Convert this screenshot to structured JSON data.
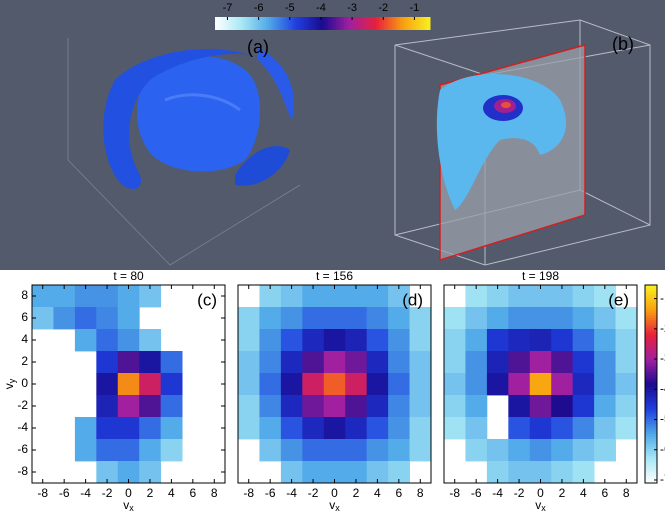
{
  "figure": {
    "labels": [
      "(a)",
      "(b)"
    ],
    "colormap": [
      "#ffffff",
      "#a8e8f4",
      "#4fa8e8",
      "#2040e0",
      "#1a0a90",
      "#a020a0",
      "#e8203c",
      "#f8a010",
      "#f8f020"
    ],
    "top_colorbar": {
      "clim": [
        -7.4,
        -0.5
      ],
      "ticks": [
        -7,
        -6,
        -5,
        -4,
        -3,
        -2,
        -1
      ]
    },
    "side_colorbar": {
      "clim": [
        -7.1,
        -0.55
      ],
      "ticks": [
        -1,
        -2,
        -3,
        -4,
        -5,
        -6,
        -7
      ]
    }
  },
  "chart_data": [
    {
      "type": "heatmap",
      "title": "t = 80",
      "label": "(c)",
      "xlabel": {
        "text": "v",
        "sub": "x"
      },
      "ylabel": {
        "text": "v",
        "sub": "y"
      },
      "x": [
        -8,
        -6,
        -4,
        -2,
        0,
        2,
        4,
        6,
        8
      ],
      "y": [
        8,
        6,
        4,
        2,
        0,
        -2,
        -4,
        -6,
        -8
      ],
      "xlim": [
        -9,
        9
      ],
      "ylim": [
        -9,
        9
      ],
      "xticks": [
        -8,
        -6,
        -4,
        -2,
        0,
        2,
        4,
        6,
        8
      ],
      "yticks": [
        -8,
        -6,
        -4,
        -2,
        0,
        2,
        4,
        6,
        8
      ],
      "z": [
        [
          -5.5,
          -5.5,
          -5.3,
          -5.3,
          -5.5,
          -5.8,
          null,
          null,
          null
        ],
        [
          -5.8,
          -5.3,
          -5.0,
          -5.2,
          -5.5,
          null,
          null,
          null,
          null
        ],
        [
          null,
          null,
          -5.5,
          -5.0,
          -5.3,
          -5.8,
          null,
          null,
          null
        ],
        [
          null,
          null,
          null,
          -4.5,
          -3.5,
          -4.0,
          -5.0,
          null,
          null
        ],
        [
          null,
          null,
          null,
          -4.0,
          -1.5,
          -2.5,
          -4.5,
          null,
          null
        ],
        [
          null,
          null,
          null,
          -4.2,
          -3.0,
          -3.5,
          -5.0,
          null,
          null
        ],
        [
          null,
          null,
          -5.5,
          -4.5,
          -4.5,
          -5.0,
          -5.5,
          null,
          null
        ],
        [
          null,
          null,
          -5.5,
          -5.0,
          -5.0,
          -5.5,
          -6.0,
          null,
          null
        ],
        [
          null,
          null,
          null,
          -5.8,
          -5.5,
          -5.8,
          null,
          null,
          null
        ]
      ]
    },
    {
      "type": "heatmap",
      "title": "t = 156",
      "label": "(d)",
      "xlabel": {
        "text": "v",
        "sub": "x"
      },
      "x": [
        -8,
        -6,
        -4,
        -2,
        0,
        2,
        4,
        6,
        8
      ],
      "y": [
        8,
        6,
        4,
        2,
        0,
        -2,
        -4,
        -6,
        -8
      ],
      "xlim": [
        -9,
        9
      ],
      "ylim": [
        -9,
        9
      ],
      "xticks": [
        -8,
        -6,
        -4,
        -2,
        0,
        2,
        4,
        6,
        8
      ],
      "z": [
        [
          null,
          -6.0,
          -5.8,
          -5.5,
          -5.5,
          -5.5,
          -5.5,
          -5.8,
          null
        ],
        [
          -6.0,
          -5.5,
          -5.3,
          -5.0,
          -5.0,
          -5.0,
          -5.2,
          -5.5,
          -6.0
        ],
        [
          -6.0,
          -5.3,
          -4.8,
          -4.3,
          -4.0,
          -4.2,
          -4.8,
          -5.3,
          -6.0
        ],
        [
          -5.8,
          -5.2,
          -4.3,
          -3.5,
          -3.0,
          -3.3,
          -4.3,
          -5.2,
          -5.8
        ],
        [
          -5.8,
          -5.0,
          -4.0,
          -2.5,
          -1.8,
          -2.5,
          -4.0,
          -5.0,
          -5.8
        ],
        [
          -6.0,
          -5.2,
          -4.3,
          -3.3,
          -3.0,
          -3.5,
          -4.3,
          -5.2,
          -5.8
        ],
        [
          -6.0,
          -5.5,
          -4.8,
          -4.3,
          -4.0,
          -4.3,
          -4.8,
          -5.3,
          -6.0
        ],
        [
          null,
          -5.8,
          -5.3,
          -5.0,
          -5.0,
          -5.0,
          -5.3,
          -5.5,
          -6.0
        ],
        [
          null,
          null,
          -5.8,
          -5.5,
          -5.5,
          -5.5,
          -5.8,
          -6.0,
          null
        ]
      ]
    },
    {
      "type": "heatmap",
      "title": "t = 198",
      "label": "(e)",
      "xlabel": {
        "text": "v",
        "sub": "x"
      },
      "x": [
        -8,
        -6,
        -4,
        -2,
        0,
        2,
        4,
        6,
        8
      ],
      "y": [
        8,
        6,
        4,
        2,
        0,
        -2,
        -4,
        -6,
        -8
      ],
      "xlim": [
        -9,
        9
      ],
      "ylim": [
        -9,
        9
      ],
      "xticks": [
        -8,
        -6,
        -4,
        -2,
        0,
        2,
        4,
        6,
        8
      ],
      "z": [
        [
          null,
          -6.2,
          -6.0,
          -5.8,
          -5.8,
          -5.8,
          -6.0,
          -6.2,
          null
        ],
        [
          -6.2,
          -5.8,
          -5.5,
          -5.3,
          -5.3,
          -5.3,
          -5.5,
          -5.8,
          -6.2
        ],
        [
          -6.0,
          -5.5,
          -4.5,
          -4.3,
          -4.2,
          -4.5,
          -5.0,
          -5.5,
          -6.0
        ],
        [
          -6.0,
          -5.3,
          -4.2,
          -3.5,
          -3.0,
          -3.5,
          -4.5,
          -5.3,
          -6.0
        ],
        [
          -5.8,
          -5.3,
          -4.0,
          -3.0,
          -1.3,
          -3.0,
          -4.3,
          -5.3,
          -5.8
        ],
        [
          -6.0,
          -5.5,
          null,
          -4.0,
          -3.3,
          -3.8,
          -4.5,
          -5.5,
          -6.0
        ],
        [
          -6.2,
          -5.8,
          null,
          -4.8,
          -4.5,
          -4.8,
          -5.2,
          -5.8,
          -6.2
        ],
        [
          null,
          -6.0,
          -5.8,
          -5.5,
          -5.3,
          -5.5,
          -5.8,
          -6.0,
          null
        ],
        [
          null,
          null,
          -6.0,
          -5.8,
          -5.8,
          -6.0,
          -6.2,
          null,
          null
        ]
      ]
    }
  ]
}
